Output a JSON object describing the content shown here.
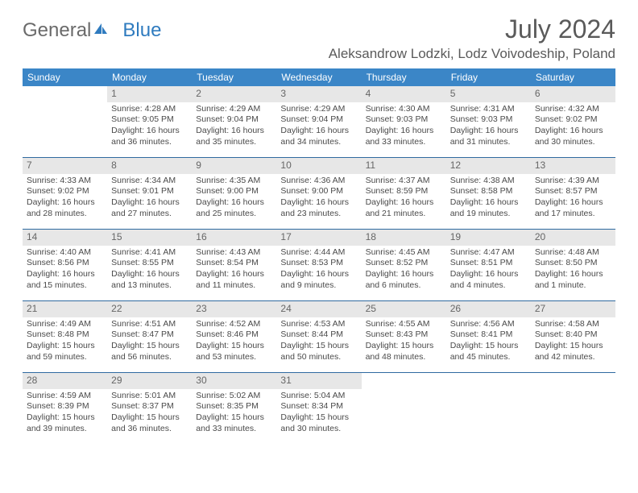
{
  "brand": {
    "part1": "General",
    "part2": "Blue"
  },
  "title": "July 2024",
  "location": "Aleksandrow Lodzki, Lodz Voivodeship, Poland",
  "colors": {
    "header_bg": "#3b86c7",
    "header_text": "#ffffff",
    "rule": "#2f6aa0",
    "daynum_bg": "#e7e7e7",
    "body_text": "#4a4a4a",
    "title_text": "#5a5a5a",
    "logo_gray": "#6a6a6a",
    "logo_blue": "#2f7bbf"
  },
  "day_names": [
    "Sunday",
    "Monday",
    "Tuesday",
    "Wednesday",
    "Thursday",
    "Friday",
    "Saturday"
  ],
  "weeks": [
    [
      {
        "n": "",
        "sr": "",
        "ss": "",
        "dl": ""
      },
      {
        "n": "1",
        "sr": "Sunrise: 4:28 AM",
        "ss": "Sunset: 9:05 PM",
        "dl": "Daylight: 16 hours and 36 minutes."
      },
      {
        "n": "2",
        "sr": "Sunrise: 4:29 AM",
        "ss": "Sunset: 9:04 PM",
        "dl": "Daylight: 16 hours and 35 minutes."
      },
      {
        "n": "3",
        "sr": "Sunrise: 4:29 AM",
        "ss": "Sunset: 9:04 PM",
        "dl": "Daylight: 16 hours and 34 minutes."
      },
      {
        "n": "4",
        "sr": "Sunrise: 4:30 AM",
        "ss": "Sunset: 9:03 PM",
        "dl": "Daylight: 16 hours and 33 minutes."
      },
      {
        "n": "5",
        "sr": "Sunrise: 4:31 AM",
        "ss": "Sunset: 9:03 PM",
        "dl": "Daylight: 16 hours and 31 minutes."
      },
      {
        "n": "6",
        "sr": "Sunrise: 4:32 AM",
        "ss": "Sunset: 9:02 PM",
        "dl": "Daylight: 16 hours and 30 minutes."
      }
    ],
    [
      {
        "n": "7",
        "sr": "Sunrise: 4:33 AM",
        "ss": "Sunset: 9:02 PM",
        "dl": "Daylight: 16 hours and 28 minutes."
      },
      {
        "n": "8",
        "sr": "Sunrise: 4:34 AM",
        "ss": "Sunset: 9:01 PM",
        "dl": "Daylight: 16 hours and 27 minutes."
      },
      {
        "n": "9",
        "sr": "Sunrise: 4:35 AM",
        "ss": "Sunset: 9:00 PM",
        "dl": "Daylight: 16 hours and 25 minutes."
      },
      {
        "n": "10",
        "sr": "Sunrise: 4:36 AM",
        "ss": "Sunset: 9:00 PM",
        "dl": "Daylight: 16 hours and 23 minutes."
      },
      {
        "n": "11",
        "sr": "Sunrise: 4:37 AM",
        "ss": "Sunset: 8:59 PM",
        "dl": "Daylight: 16 hours and 21 minutes."
      },
      {
        "n": "12",
        "sr": "Sunrise: 4:38 AM",
        "ss": "Sunset: 8:58 PM",
        "dl": "Daylight: 16 hours and 19 minutes."
      },
      {
        "n": "13",
        "sr": "Sunrise: 4:39 AM",
        "ss": "Sunset: 8:57 PM",
        "dl": "Daylight: 16 hours and 17 minutes."
      }
    ],
    [
      {
        "n": "14",
        "sr": "Sunrise: 4:40 AM",
        "ss": "Sunset: 8:56 PM",
        "dl": "Daylight: 16 hours and 15 minutes."
      },
      {
        "n": "15",
        "sr": "Sunrise: 4:41 AM",
        "ss": "Sunset: 8:55 PM",
        "dl": "Daylight: 16 hours and 13 minutes."
      },
      {
        "n": "16",
        "sr": "Sunrise: 4:43 AM",
        "ss": "Sunset: 8:54 PM",
        "dl": "Daylight: 16 hours and 11 minutes."
      },
      {
        "n": "17",
        "sr": "Sunrise: 4:44 AM",
        "ss": "Sunset: 8:53 PM",
        "dl": "Daylight: 16 hours and 9 minutes."
      },
      {
        "n": "18",
        "sr": "Sunrise: 4:45 AM",
        "ss": "Sunset: 8:52 PM",
        "dl": "Daylight: 16 hours and 6 minutes."
      },
      {
        "n": "19",
        "sr": "Sunrise: 4:47 AM",
        "ss": "Sunset: 8:51 PM",
        "dl": "Daylight: 16 hours and 4 minutes."
      },
      {
        "n": "20",
        "sr": "Sunrise: 4:48 AM",
        "ss": "Sunset: 8:50 PM",
        "dl": "Daylight: 16 hours and 1 minute."
      }
    ],
    [
      {
        "n": "21",
        "sr": "Sunrise: 4:49 AM",
        "ss": "Sunset: 8:48 PM",
        "dl": "Daylight: 15 hours and 59 minutes."
      },
      {
        "n": "22",
        "sr": "Sunrise: 4:51 AM",
        "ss": "Sunset: 8:47 PM",
        "dl": "Daylight: 15 hours and 56 minutes."
      },
      {
        "n": "23",
        "sr": "Sunrise: 4:52 AM",
        "ss": "Sunset: 8:46 PM",
        "dl": "Daylight: 15 hours and 53 minutes."
      },
      {
        "n": "24",
        "sr": "Sunrise: 4:53 AM",
        "ss": "Sunset: 8:44 PM",
        "dl": "Daylight: 15 hours and 50 minutes."
      },
      {
        "n": "25",
        "sr": "Sunrise: 4:55 AM",
        "ss": "Sunset: 8:43 PM",
        "dl": "Daylight: 15 hours and 48 minutes."
      },
      {
        "n": "26",
        "sr": "Sunrise: 4:56 AM",
        "ss": "Sunset: 8:41 PM",
        "dl": "Daylight: 15 hours and 45 minutes."
      },
      {
        "n": "27",
        "sr": "Sunrise: 4:58 AM",
        "ss": "Sunset: 8:40 PM",
        "dl": "Daylight: 15 hours and 42 minutes."
      }
    ],
    [
      {
        "n": "28",
        "sr": "Sunrise: 4:59 AM",
        "ss": "Sunset: 8:39 PM",
        "dl": "Daylight: 15 hours and 39 minutes."
      },
      {
        "n": "29",
        "sr": "Sunrise: 5:01 AM",
        "ss": "Sunset: 8:37 PM",
        "dl": "Daylight: 15 hours and 36 minutes."
      },
      {
        "n": "30",
        "sr": "Sunrise: 5:02 AM",
        "ss": "Sunset: 8:35 PM",
        "dl": "Daylight: 15 hours and 33 minutes."
      },
      {
        "n": "31",
        "sr": "Sunrise: 5:04 AM",
        "ss": "Sunset: 8:34 PM",
        "dl": "Daylight: 15 hours and 30 minutes."
      },
      {
        "n": "",
        "sr": "",
        "ss": "",
        "dl": ""
      },
      {
        "n": "",
        "sr": "",
        "ss": "",
        "dl": ""
      },
      {
        "n": "",
        "sr": "",
        "ss": "",
        "dl": ""
      }
    ]
  ]
}
